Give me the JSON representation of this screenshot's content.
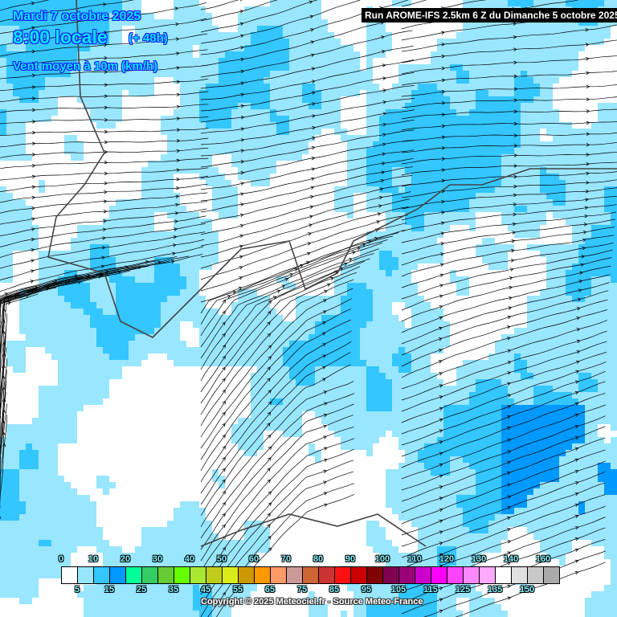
{
  "header": {
    "date": "Mardi 7 octobre 2025",
    "time": "8:00 locale",
    "lead": "(+ 48h)",
    "title": "Vent moyen à 10m (km/h)"
  },
  "run_banner": "Run AROME-IFS 2.5km 6 Z du Dimanche 5 octobre 2025",
  "legend": {
    "colors": [
      "#ffffff",
      "#99e6ff",
      "#33c6ff",
      "#0099ff",
      "#00ff99",
      "#33cc66",
      "#66cc33",
      "#66ff00",
      "#a8e833",
      "#c0cc1a",
      "#d9ec1a",
      "#cc9900",
      "#ff9900",
      "#ff9966",
      "#cc9999",
      "#cc6633",
      "#cc3333",
      "#ff1111",
      "#cc0000",
      "#800000",
      "#800050",
      "#990077",
      "#cc00cc",
      "#ff00ff",
      "#ff44ff",
      "#ff88ff",
      "#ffaaff",
      "#ffffff",
      "#e0e0e0",
      "#c8c8c8",
      "#aaaaaa"
    ],
    "top_labels": [
      "0",
      "10",
      "20",
      "30",
      "40",
      "50",
      "60",
      "70",
      "80",
      "90",
      "100",
      "110",
      "120",
      "130",
      "140",
      "160"
    ],
    "bottom_labels": [
      "5",
      "15",
      "25",
      "35",
      "45",
      "55",
      "65",
      "75",
      "85",
      "95",
      "105",
      "115",
      "125",
      "135",
      "150"
    ]
  },
  "copyright": "Copyright © 2025 Meteociel.fr - Source Meteo-France"
}
